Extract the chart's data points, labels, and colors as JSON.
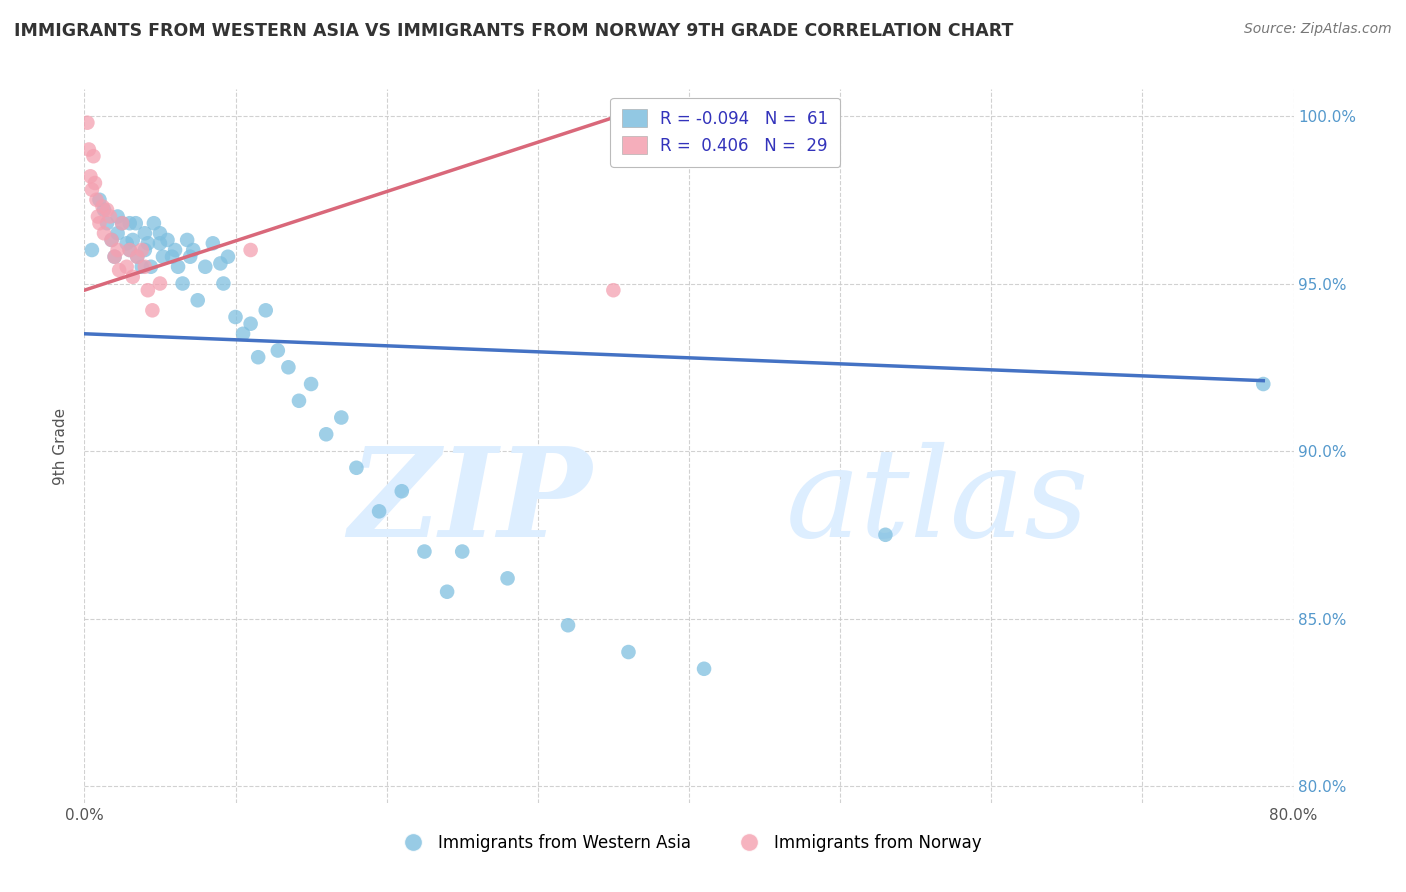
{
  "title": "IMMIGRANTS FROM WESTERN ASIA VS IMMIGRANTS FROM NORWAY 9TH GRADE CORRELATION CHART",
  "source": "Source: ZipAtlas.com",
  "ylabel": "9th Grade",
  "xlim": [
    0.0,
    0.8
  ],
  "ylim": [
    0.795,
    1.008
  ],
  "xticks": [
    0.0,
    0.1,
    0.2,
    0.3,
    0.4,
    0.5,
    0.6,
    0.7,
    0.8
  ],
  "yticks": [
    0.8,
    0.85,
    0.9,
    0.95,
    1.0
  ],
  "ytick_labels": [
    "80.0%",
    "85.0%",
    "90.0%",
    "95.0%",
    "100.0%"
  ],
  "blue_color": "#7fbfdf",
  "pink_color": "#f4a0b0",
  "blue_line_color": "#4472c4",
  "pink_line_color": "#d9687a",
  "grid_color": "#cccccc",
  "watermark_zip": "ZIP",
  "watermark_atlas": "atlas",
  "blue_scatter_x": [
    0.005,
    0.01,
    0.013,
    0.015,
    0.018,
    0.02,
    0.022,
    0.022,
    0.025,
    0.028,
    0.03,
    0.03,
    0.032,
    0.034,
    0.035,
    0.038,
    0.04,
    0.04,
    0.042,
    0.044,
    0.046,
    0.05,
    0.05,
    0.052,
    0.055,
    0.058,
    0.06,
    0.062,
    0.065,
    0.068,
    0.07,
    0.072,
    0.075,
    0.08,
    0.085,
    0.09,
    0.092,
    0.095,
    0.1,
    0.105,
    0.11,
    0.115,
    0.12,
    0.128,
    0.135,
    0.142,
    0.15,
    0.16,
    0.17,
    0.18,
    0.195,
    0.21,
    0.225,
    0.24,
    0.25,
    0.28,
    0.32,
    0.36,
    0.41,
    0.53,
    0.78
  ],
  "blue_scatter_y": [
    0.96,
    0.975,
    0.972,
    0.968,
    0.963,
    0.958,
    0.965,
    0.97,
    0.968,
    0.962,
    0.96,
    0.968,
    0.963,
    0.968,
    0.958,
    0.955,
    0.965,
    0.96,
    0.962,
    0.955,
    0.968,
    0.965,
    0.962,
    0.958,
    0.963,
    0.958,
    0.96,
    0.955,
    0.95,
    0.963,
    0.958,
    0.96,
    0.945,
    0.955,
    0.962,
    0.956,
    0.95,
    0.958,
    0.94,
    0.935,
    0.938,
    0.928,
    0.942,
    0.93,
    0.925,
    0.915,
    0.92,
    0.905,
    0.91,
    0.895,
    0.882,
    0.888,
    0.87,
    0.858,
    0.87,
    0.862,
    0.848,
    0.84,
    0.835,
    0.875,
    0.92
  ],
  "pink_scatter_x": [
    0.002,
    0.003,
    0.004,
    0.005,
    0.006,
    0.007,
    0.008,
    0.009,
    0.01,
    0.012,
    0.013,
    0.015,
    0.017,
    0.018,
    0.02,
    0.022,
    0.023,
    0.025,
    0.028,
    0.03,
    0.032,
    0.035,
    0.038,
    0.04,
    0.042,
    0.045,
    0.05,
    0.11,
    0.35
  ],
  "pink_scatter_y": [
    0.998,
    0.99,
    0.982,
    0.978,
    0.988,
    0.98,
    0.975,
    0.97,
    0.968,
    0.973,
    0.965,
    0.972,
    0.97,
    0.963,
    0.958,
    0.96,
    0.954,
    0.968,
    0.955,
    0.96,
    0.952,
    0.958,
    0.96,
    0.955,
    0.948,
    0.942,
    0.95,
    0.96,
    0.948
  ],
  "blue_line_x": [
    0.0,
    0.78
  ],
  "blue_line_y": [
    0.935,
    0.921
  ],
  "pink_line_x": [
    0.0,
    0.36
  ],
  "pink_line_y": [
    0.948,
    1.001
  ],
  "legend_text1": "R = -0.094   N =  61",
  "legend_text2": "R =  0.406   N =  29",
  "legend_color": "#3333bb",
  "bottom_label1": "Immigrants from Western Asia",
  "bottom_label2": "Immigrants from Norway"
}
